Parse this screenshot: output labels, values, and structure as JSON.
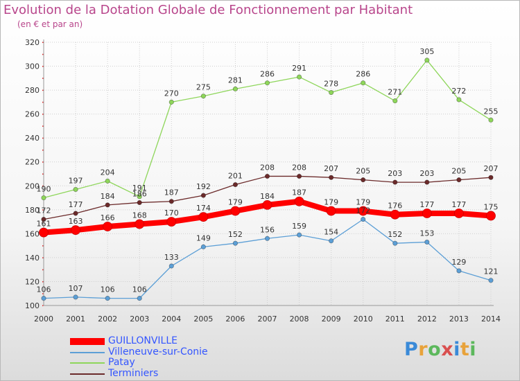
{
  "title": "Evolution de la Dotation Globale de Fonctionnement par Habitant",
  "subtitle": "(en € et par an)",
  "logo_text": "Proxiti",
  "chart_data": {
    "type": "line",
    "title": "Evolution de la Dotation Globale de Fonctionnement par Habitant",
    "subtitle": "(en € et par an)",
    "xlabel": "",
    "ylabel": "",
    "x": [
      2000,
      2001,
      2002,
      2003,
      2004,
      2005,
      2006,
      2007,
      2008,
      2009,
      2010,
      2011,
      2012,
      2013,
      2014
    ],
    "ylim": [
      100,
      320
    ],
    "yticks": [
      100,
      120,
      140,
      160,
      180,
      200,
      220,
      240,
      260,
      280,
      300,
      320
    ],
    "grid": true,
    "legend_position": "bottom-left",
    "series": [
      {
        "name": "GUILLONVILLE",
        "color": "#ff0000",
        "values": [
          161,
          163,
          166,
          168,
          170,
          174,
          179,
          184,
          187,
          179,
          179,
          176,
          177,
          177,
          175
        ]
      },
      {
        "name": "Villeneuve-sur-Conie",
        "color": "#5c9fd6",
        "values": [
          106,
          107,
          106,
          106,
          133,
          149,
          152,
          156,
          159,
          154,
          172,
          152,
          153,
          129,
          121
        ]
      },
      {
        "name": "Patay",
        "color": "#8ed65a",
        "values": [
          190,
          197,
          204,
          191,
          270,
          275,
          281,
          286,
          291,
          278,
          286,
          271,
          305,
          272,
          255
        ]
      },
      {
        "name": "Terminiers",
        "color": "#6b2a2a",
        "values": [
          172,
          177,
          184,
          186,
          187,
          192,
          201,
          208,
          208,
          207,
          205,
          203,
          203,
          205,
          207
        ]
      }
    ]
  }
}
